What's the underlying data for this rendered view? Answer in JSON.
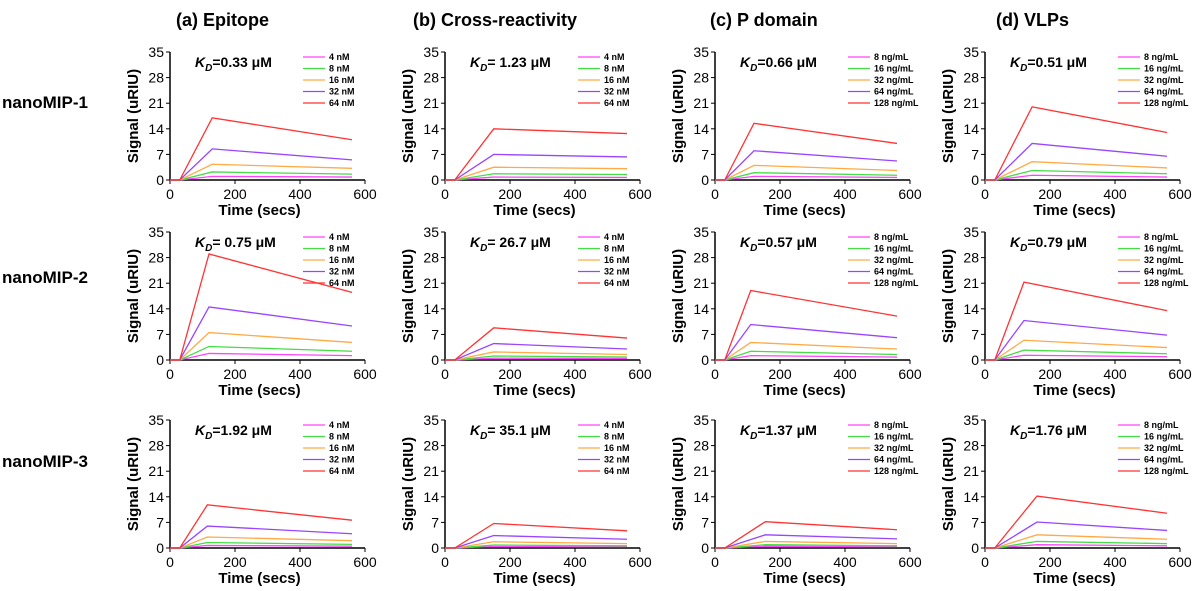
{
  "column_titles": [
    "(a) Epitope",
    "(b) Cross-reactivity",
    "(c) P domain",
    "(d) VLPs"
  ],
  "row_labels": [
    "nanoMIP-1",
    "nanoMIP-2",
    "nanoMIP-3"
  ],
  "colors": {
    "s1": "#ff44ff",
    "s2": "#44dd44",
    "s3": "#ffaa44",
    "s4": "#9944ff",
    "s5": "#ff3333"
  },
  "chart_data": [
    {
      "type": "line",
      "id": "a1",
      "kd_symbol": "K",
      "kd_sub": "D",
      "kd_value": "=0.33 μM",
      "xlabel": "Time (secs)",
      "ylabel": "Signal (uRIU)",
      "xlim": [
        0,
        600
      ],
      "ylim": [
        0,
        35
      ],
      "xticks": [
        "0",
        "200",
        "400",
        "600"
      ],
      "yticks": [
        "0",
        "7",
        "14",
        "21",
        "28",
        "35"
      ],
      "inject_start": 30,
      "inject_end": 130,
      "end_time": 560,
      "series": [
        {
          "name": "4 nM",
          "peak": 1.0,
          "end": 0.8
        },
        {
          "name": "8 nM",
          "peak": 2.2,
          "end": 1.6
        },
        {
          "name": "16 nM",
          "peak": 4.3,
          "end": 3.2
        },
        {
          "name": "32 nM",
          "peak": 8.5,
          "end": 5.5
        },
        {
          "name": "64 nM",
          "peak": 17.0,
          "end": 11.0
        }
      ]
    },
    {
      "type": "line",
      "id": "b1",
      "kd_symbol": "K",
      "kd_sub": "D",
      "kd_value": "= 1.23 μM",
      "xlabel": "Time (secs)",
      "ylabel": "Signal (uRIU)",
      "xlim": [
        0,
        600
      ],
      "ylim": [
        0,
        35
      ],
      "xticks": [
        "0",
        "200",
        "400",
        "600"
      ],
      "yticks": [
        "0",
        "7",
        "14",
        "21",
        "28",
        "35"
      ],
      "inject_start": 30,
      "inject_end": 150,
      "end_time": 560,
      "series": [
        {
          "name": "4 nM",
          "peak": 0.8,
          "end": 0.7
        },
        {
          "name": "8 nM",
          "peak": 1.7,
          "end": 1.5
        },
        {
          "name": "16 nM",
          "peak": 3.5,
          "end": 3.1
        },
        {
          "name": "32 nM",
          "peak": 7.0,
          "end": 6.3
        },
        {
          "name": "64 nM",
          "peak": 14.0,
          "end": 12.7
        }
      ]
    },
    {
      "type": "line",
      "id": "c1",
      "kd_symbol": "K",
      "kd_sub": "D",
      "kd_value": "=0.66 μM",
      "xlabel": "Time (secs)",
      "ylabel": "Signal (uRIU)",
      "xlim": [
        0,
        600
      ],
      "ylim": [
        0,
        35
      ],
      "xticks": [
        "0",
        "200",
        "400",
        "600"
      ],
      "yticks": [
        "0",
        "7",
        "14",
        "21",
        "28",
        "35"
      ],
      "inject_start": 30,
      "inject_end": 120,
      "end_time": 560,
      "series": [
        {
          "name": "8 ng/mL",
          "peak": 1.0,
          "end": 0.7
        },
        {
          "name": "16 ng/mL",
          "peak": 2.0,
          "end": 1.3
        },
        {
          "name": "32 ng/mL",
          "peak": 4.0,
          "end": 2.6
        },
        {
          "name": "64 ng/mL",
          "peak": 8.0,
          "end": 5.2
        },
        {
          "name": "128 ng/mL",
          "peak": 15.5,
          "end": 10.0
        }
      ]
    },
    {
      "type": "line",
      "id": "d1",
      "kd_symbol": "K",
      "kd_sub": "D",
      "kd_value": "=0.51 μM",
      "xlabel": "Time (secs)",
      "ylabel": "Signal (uRIU)",
      "xlim": [
        0,
        600
      ],
      "ylim": [
        0,
        35
      ],
      "xticks": [
        "0",
        "200",
        "400",
        "600"
      ],
      "yticks": [
        "0",
        "7",
        "14",
        "21",
        "28",
        "35"
      ],
      "inject_start": 30,
      "inject_end": 145,
      "end_time": 560,
      "series": [
        {
          "name": "8 ng/mL",
          "peak": 1.3,
          "end": 0.8
        },
        {
          "name": "16 ng/mL",
          "peak": 2.6,
          "end": 1.7
        },
        {
          "name": "32 ng/mL",
          "peak": 5.0,
          "end": 3.3
        },
        {
          "name": "64 ng/mL",
          "peak": 10.0,
          "end": 6.5
        },
        {
          "name": "128 ng/mL",
          "peak": 20.0,
          "end": 13.0
        }
      ]
    },
    {
      "type": "line",
      "id": "a2",
      "kd_symbol": "K",
      "kd_sub": "D",
      "kd_value": "= 0.75 μM",
      "xlabel": "Time (secs)",
      "ylabel": "Signal (uRIU)",
      "xlim": [
        0,
        600
      ],
      "ylim": [
        0,
        35
      ],
      "xticks": [
        "0",
        "200",
        "400",
        "600"
      ],
      "yticks": [
        "0",
        "7",
        "14",
        "21",
        "28",
        "35"
      ],
      "inject_start": 30,
      "inject_end": 120,
      "end_time": 560,
      "series": [
        {
          "name": "4 nM",
          "peak": 1.8,
          "end": 1.2
        },
        {
          "name": "8 nM",
          "peak": 3.7,
          "end": 2.4
        },
        {
          "name": "16 nM",
          "peak": 7.5,
          "end": 4.8
        },
        {
          "name": "32 nM",
          "peak": 14.5,
          "end": 9.3
        },
        {
          "name": "64 nM",
          "peak": 29.0,
          "end": 18.5
        }
      ]
    },
    {
      "type": "line",
      "id": "b2",
      "kd_symbol": "K",
      "kd_sub": "D",
      "kd_value": "= 26.7 μM",
      "xlabel": "Time (secs)",
      "ylabel": "Signal (uRIU)",
      "xlim": [
        0,
        600
      ],
      "ylim": [
        0,
        35
      ],
      "xticks": [
        "0",
        "200",
        "400",
        "600"
      ],
      "yticks": [
        "0",
        "7",
        "14",
        "21",
        "28",
        "35"
      ],
      "inject_start": 30,
      "inject_end": 150,
      "end_time": 560,
      "series": [
        {
          "name": "4 nM",
          "peak": 0.5,
          "end": 0.4
        },
        {
          "name": "8 nM",
          "peak": 1.1,
          "end": 0.8
        },
        {
          "name": "16 nM",
          "peak": 2.2,
          "end": 1.5
        },
        {
          "name": "32 nM",
          "peak": 4.5,
          "end": 3.0
        },
        {
          "name": "64 nM",
          "peak": 8.8,
          "end": 6.0
        }
      ]
    },
    {
      "type": "line",
      "id": "c2",
      "kd_symbol": "K",
      "kd_sub": "D",
      "kd_value": "=0.57 μM",
      "xlabel": "Time (secs)",
      "ylabel": "Signal (uRIU)",
      "xlim": [
        0,
        600
      ],
      "ylim": [
        0,
        35
      ],
      "xticks": [
        "0",
        "200",
        "400",
        "600"
      ],
      "yticks": [
        "0",
        "7",
        "14",
        "21",
        "28",
        "35"
      ],
      "inject_start": 30,
      "inject_end": 110,
      "end_time": 560,
      "series": [
        {
          "name": "8 ng/mL",
          "peak": 1.2,
          "end": 0.8
        },
        {
          "name": "16 ng/mL",
          "peak": 2.4,
          "end": 1.5
        },
        {
          "name": "32 ng/mL",
          "peak": 4.8,
          "end": 3.0
        },
        {
          "name": "64 ng/mL",
          "peak": 9.7,
          "end": 6.1
        },
        {
          "name": "128 ng/mL",
          "peak": 19.0,
          "end": 12.0
        }
      ]
    },
    {
      "type": "line",
      "id": "d2",
      "kd_symbol": "K",
      "kd_sub": "D",
      "kd_value": "=0.79 μM",
      "xlabel": "Time (secs)",
      "ylabel": "Signal (uRIU)",
      "xlim": [
        0,
        600
      ],
      "ylim": [
        0,
        35
      ],
      "xticks": [
        "0",
        "200",
        "400",
        "600"
      ],
      "yticks": [
        "0",
        "7",
        "14",
        "21",
        "28",
        "35"
      ],
      "inject_start": 30,
      "inject_end": 120,
      "end_time": 560,
      "series": [
        {
          "name": "8 ng/mL",
          "peak": 1.3,
          "end": 0.9
        },
        {
          "name": "16 ng/mL",
          "peak": 2.7,
          "end": 1.7
        },
        {
          "name": "32 ng/mL",
          "peak": 5.4,
          "end": 3.4
        },
        {
          "name": "64 ng/mL",
          "peak": 10.8,
          "end": 6.8
        },
        {
          "name": "128 ng/mL",
          "peak": 21.3,
          "end": 13.5
        }
      ]
    },
    {
      "type": "line",
      "id": "a3",
      "kd_symbol": "K",
      "kd_sub": "D",
      "kd_value": "=1.92 μM",
      "xlabel": "Time (secs)",
      "ylabel": "Signal (uRIU)",
      "xlim": [
        0,
        600
      ],
      "ylim": [
        0,
        35
      ],
      "xticks": [
        "0",
        "200",
        "400",
        "600"
      ],
      "yticks": [
        "0",
        "7",
        "14",
        "21",
        "28",
        "35"
      ],
      "inject_start": 30,
      "inject_end": 115,
      "end_time": 560,
      "series": [
        {
          "name": "4 nM",
          "peak": 0.7,
          "end": 0.5
        },
        {
          "name": "8 nM",
          "peak": 1.5,
          "end": 1.0
        },
        {
          "name": "16 nM",
          "peak": 3.0,
          "end": 2.0
        },
        {
          "name": "32 nM",
          "peak": 6.0,
          "end": 3.9
        },
        {
          "name": "64 nM",
          "peak": 11.8,
          "end": 7.6
        }
      ]
    },
    {
      "type": "line",
      "id": "b3",
      "kd_symbol": "K",
      "kd_sub": "D",
      "kd_value": "= 35.1 μM",
      "xlabel": "Time (secs)",
      "ylabel": "Signal (uRIU)",
      "xlim": [
        0,
        600
      ],
      "ylim": [
        0,
        35
      ],
      "xticks": [
        "0",
        "200",
        "400",
        "600"
      ],
      "yticks": [
        "0",
        "7",
        "14",
        "21",
        "28",
        "35"
      ],
      "inject_start": 30,
      "inject_end": 150,
      "end_time": 560,
      "series": [
        {
          "name": "4 nM",
          "peak": 0.4,
          "end": 0.3
        },
        {
          "name": "8 nM",
          "peak": 0.8,
          "end": 0.6
        },
        {
          "name": "16 nM",
          "peak": 1.7,
          "end": 1.2
        },
        {
          "name": "32 nM",
          "peak": 3.4,
          "end": 2.4
        },
        {
          "name": "64 nM",
          "peak": 6.7,
          "end": 4.7
        }
      ]
    },
    {
      "type": "line",
      "id": "c3",
      "kd_symbol": "K",
      "kd_sub": "D",
      "kd_value": "=1.37 μM",
      "xlabel": "Time (secs)",
      "ylabel": "Signal (uRIU)",
      "xlim": [
        0,
        600
      ],
      "ylim": [
        0,
        35
      ],
      "xticks": [
        "0",
        "200",
        "400",
        "600"
      ],
      "yticks": [
        "0",
        "7",
        "14",
        "21",
        "28",
        "35"
      ],
      "inject_start": 30,
      "inject_end": 155,
      "end_time": 560,
      "series": [
        {
          "name": "8 ng/mL",
          "peak": 0.5,
          "end": 0.3
        },
        {
          "name": "16 ng/mL",
          "peak": 0.9,
          "end": 0.6
        },
        {
          "name": "32 ng/mL",
          "peak": 1.8,
          "end": 1.2
        },
        {
          "name": "64 ng/mL",
          "peak": 3.6,
          "end": 2.5
        },
        {
          "name": "128 ng/mL",
          "peak": 7.2,
          "end": 5.0
        }
      ]
    },
    {
      "type": "line",
      "id": "d3",
      "kd_symbol": "K",
      "kd_sub": "D",
      "kd_value": "=1.76 μM",
      "xlabel": "Time (secs)",
      "ylabel": "Signal (uRIU)",
      "xlim": [
        0,
        600
      ],
      "ylim": [
        0,
        35
      ],
      "xticks": [
        "0",
        "200",
        "400",
        "600"
      ],
      "yticks": [
        "0",
        "7",
        "14",
        "21",
        "28",
        "35"
      ],
      "inject_start": 30,
      "inject_end": 160,
      "end_time": 560,
      "series": [
        {
          "name": "8 ng/mL",
          "peak": 0.9,
          "end": 0.6
        },
        {
          "name": "16 ng/mL",
          "peak": 1.8,
          "end": 1.2
        },
        {
          "name": "32 ng/mL",
          "peak": 3.6,
          "end": 2.4
        },
        {
          "name": "64 ng/mL",
          "peak": 7.1,
          "end": 4.8
        },
        {
          "name": "128 ng/mL",
          "peak": 14.2,
          "end": 9.5
        }
      ]
    }
  ]
}
